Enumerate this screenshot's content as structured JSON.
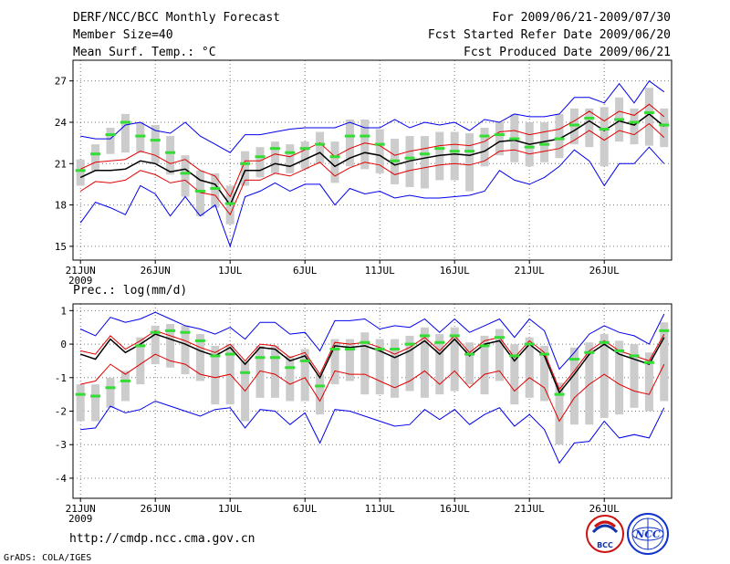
{
  "header": {
    "title": "DERF/NCC/BCC Monthly Forecast",
    "member_size": "Member Size=40",
    "variable1": "Mean Surf. Temp.: °C",
    "period": "For 2009/06/21-2009/07/30",
    "started": "Fcst Started Refer Date 2009/06/20",
    "produced": "Fcst Produced Date 2009/06/21"
  },
  "footer": {
    "url": "http://cmdp.ncc.cma.gov.cn",
    "grads": "GrADS: COLA/IGES",
    "logo1_text": "BCC",
    "logo2_text": "NCC"
  },
  "xaxis": {
    "tick_days": [
      1,
      6,
      11,
      16,
      21,
      26,
      31,
      36
    ],
    "tick_labels": [
      "21JUN",
      "26JUN",
      "1JUL",
      "6JUL",
      "11JUL",
      "16JUL",
      "21JUL",
      "26JUL"
    ],
    "year_label": "2009",
    "range": [
      0.5,
      40.5
    ]
  },
  "colors": {
    "mean": "#000000",
    "spread": "#e00000",
    "extreme": "#0000ee",
    "box": "#cccccc",
    "median": "#33dd33"
  },
  "chart_data": [
    {
      "type": "line",
      "title": "Mean Surf. Temp.: °C",
      "ylim": [
        14,
        28.5
      ],
      "yticks": [
        15,
        18,
        21,
        24,
        27
      ],
      "days": [
        1,
        2,
        3,
        4,
        5,
        6,
        7,
        8,
        9,
        10,
        11,
        12,
        13,
        14,
        15,
        16,
        17,
        18,
        19,
        20,
        21,
        22,
        23,
        24,
        25,
        26,
        27,
        28,
        29,
        30,
        31,
        32,
        33,
        34,
        35,
        36,
        37,
        38,
        39,
        40
      ],
      "series": [
        {
          "name": "ensemble mean",
          "values": [
            20.0,
            20.5,
            20.5,
            20.6,
            21.2,
            21.0,
            20.4,
            20.6,
            19.8,
            19.5,
            18.0,
            20.5,
            20.5,
            21.0,
            20.8,
            21.3,
            21.8,
            20.8,
            21.4,
            21.8,
            21.6,
            20.9,
            21.2,
            21.4,
            21.6,
            21.7,
            21.6,
            21.9,
            22.6,
            22.7,
            22.4,
            22.6,
            22.8,
            23.4,
            24.1,
            23.4,
            24.1,
            23.8,
            24.6,
            23.7
          ]
        },
        {
          "name": "mean + spread",
          "values": [
            20.6,
            21.1,
            21.2,
            21.3,
            21.9,
            21.6,
            21.0,
            21.3,
            20.5,
            20.1,
            18.6,
            21.2,
            21.2,
            21.7,
            21.5,
            22.0,
            22.5,
            21.5,
            22.1,
            22.5,
            22.3,
            21.6,
            21.9,
            22.1,
            22.3,
            22.4,
            22.3,
            22.6,
            23.3,
            23.4,
            23.1,
            23.3,
            23.5,
            24.1,
            24.8,
            24.1,
            24.8,
            24.5,
            25.3,
            24.4
          ]
        },
        {
          "name": "mean - spread",
          "values": [
            19.0,
            19.7,
            19.6,
            19.8,
            20.5,
            20.2,
            19.6,
            19.8,
            18.9,
            18.7,
            17.3,
            19.8,
            19.8,
            20.3,
            20.1,
            20.6,
            21.1,
            20.1,
            20.7,
            21.1,
            20.9,
            20.2,
            20.5,
            20.7,
            20.9,
            21.0,
            20.9,
            21.2,
            21.9,
            22.0,
            21.7,
            21.9,
            22.1,
            22.7,
            23.4,
            22.7,
            23.4,
            23.1,
            23.9,
            22.9
          ]
        },
        {
          "name": "ensemble max",
          "values": [
            23.0,
            22.8,
            22.8,
            23.8,
            24.0,
            23.4,
            23.2,
            24.0,
            23.0,
            22.4,
            21.8,
            23.1,
            23.1,
            23.3,
            23.5,
            23.6,
            23.6,
            23.6,
            24.0,
            23.6,
            23.6,
            24.2,
            23.6,
            24.0,
            23.8,
            24.0,
            23.4,
            24.2,
            24.0,
            24.6,
            24.4,
            24.4,
            24.6,
            25.8,
            25.8,
            25.4,
            26.8,
            25.4,
            27.0,
            26.2
          ]
        },
        {
          "name": "ensemble min",
          "values": [
            16.7,
            18.2,
            17.8,
            17.3,
            19.4,
            18.8,
            17.2,
            18.6,
            17.2,
            18.0,
            15.0,
            18.6,
            19.0,
            19.6,
            19.0,
            19.5,
            19.5,
            18.0,
            19.2,
            18.8,
            19.0,
            18.5,
            18.7,
            18.5,
            18.5,
            18.6,
            18.7,
            19.0,
            20.5,
            19.8,
            19.5,
            20.0,
            20.8,
            22.0,
            21.2,
            19.4,
            21.0,
            21.0,
            22.2,
            21.0
          ]
        },
        {
          "name": "median",
          "values": [
            20.5,
            21.7,
            23.1,
            24.0,
            23.0,
            22.7,
            21.8,
            20.3,
            19.0,
            19.2,
            18.1,
            21.0,
            21.5,
            22.1,
            21.8,
            22.1,
            22.4,
            21.5,
            23.0,
            23.0,
            22.4,
            21.2,
            21.4,
            21.7,
            22.1,
            21.9,
            21.9,
            23.0,
            23.1,
            22.8,
            22.2,
            22.4,
            22.8,
            23.8,
            24.3,
            23.5,
            24.2,
            24.0,
            24.7,
            23.8
          ]
        },
        {
          "name": "box top",
          "values": [
            21.3,
            22.4,
            23.6,
            24.6,
            24.0,
            23.8,
            23.0,
            21.6,
            20.5,
            20.3,
            19.4,
            21.9,
            22.2,
            22.6,
            22.4,
            22.6,
            23.3,
            22.6,
            24.2,
            24.2,
            23.5,
            22.8,
            23.0,
            23.0,
            23.3,
            23.3,
            23.2,
            23.6,
            24.0,
            24.6,
            24.0,
            24.0,
            24.6,
            25.0,
            25.0,
            25.1,
            25.8,
            25.0,
            26.5,
            25.0
          ]
        },
        {
          "name": "box bottom",
          "values": [
            19.4,
            20.5,
            21.7,
            21.8,
            21.8,
            21.0,
            20.2,
            18.6,
            17.2,
            17.8,
            16.6,
            19.4,
            20.0,
            20.3,
            20.3,
            20.6,
            21.0,
            19.6,
            20.8,
            20.6,
            20.3,
            19.5,
            19.3,
            19.2,
            19.8,
            19.8,
            19.0,
            20.8,
            21.6,
            21.1,
            20.8,
            21.1,
            21.4,
            22.4,
            22.2,
            20.8,
            22.6,
            22.4,
            22.3,
            22.2
          ]
        }
      ]
    },
    {
      "type": "line",
      "title": "Prec.: log(mm/d)",
      "ylim": [
        -4.6,
        1.2
      ],
      "yticks": [
        1,
        0,
        -1,
        -2,
        -3,
        -4
      ],
      "days": [
        1,
        2,
        3,
        4,
        5,
        6,
        7,
        8,
        9,
        10,
        11,
        12,
        13,
        14,
        15,
        16,
        17,
        18,
        19,
        20,
        21,
        22,
        23,
        24,
        25,
        26,
        27,
        28,
        29,
        30,
        31,
        32,
        33,
        34,
        35,
        36,
        37,
        38,
        39,
        40
      ],
      "series": [
        {
          "name": "ensemble mean",
          "values": [
            -0.3,
            -0.45,
            0.15,
            -0.25,
            0.0,
            0.3,
            0.15,
            0.0,
            -0.2,
            -0.35,
            -0.1,
            -0.6,
            -0.1,
            -0.15,
            -0.5,
            -0.35,
            -1.0,
            -0.05,
            -0.1,
            -0.05,
            -0.2,
            -0.4,
            -0.2,
            0.1,
            -0.3,
            0.15,
            -0.35,
            0.0,
            0.1,
            -0.5,
            0.0,
            -0.35,
            -1.45,
            -0.9,
            -0.3,
            0.0,
            -0.3,
            -0.45,
            -0.6,
            0.2
          ]
        },
        {
          "name": "mean + spread",
          "values": [
            -0.2,
            -0.3,
            0.25,
            -0.15,
            0.1,
            0.4,
            0.25,
            0.1,
            -0.1,
            -0.25,
            0.0,
            -0.5,
            0.0,
            -0.05,
            -0.4,
            -0.25,
            -0.9,
            0.05,
            0.0,
            0.05,
            -0.1,
            -0.3,
            -0.1,
            0.2,
            -0.2,
            0.25,
            -0.25,
            0.1,
            0.2,
            -0.4,
            0.1,
            -0.25,
            -1.35,
            -0.8,
            -0.2,
            0.1,
            -0.2,
            -0.35,
            -0.5,
            0.3
          ]
        },
        {
          "name": "mean - spread",
          "values": [
            -1.2,
            -1.1,
            -0.6,
            -0.9,
            -0.6,
            -0.3,
            -0.5,
            -0.6,
            -0.9,
            -1.0,
            -0.9,
            -1.4,
            -0.8,
            -0.9,
            -1.2,
            -1.0,
            -1.7,
            -0.8,
            -0.9,
            -0.9,
            -1.1,
            -1.3,
            -1.1,
            -0.8,
            -1.2,
            -0.8,
            -1.3,
            -0.9,
            -0.8,
            -1.4,
            -1.0,
            -1.3,
            -2.3,
            -1.6,
            -1.2,
            -0.9,
            -1.2,
            -1.4,
            -1.5,
            -0.6
          ]
        },
        {
          "name": "ensemble max",
          "values": [
            0.45,
            0.25,
            0.8,
            0.65,
            0.75,
            0.95,
            0.75,
            0.55,
            0.45,
            0.3,
            0.5,
            0.15,
            0.65,
            0.65,
            0.3,
            0.35,
            -0.2,
            0.7,
            0.7,
            0.75,
            0.45,
            0.55,
            0.5,
            0.75,
            0.35,
            0.75,
            0.35,
            0.55,
            0.75,
            0.2,
            0.75,
            0.4,
            -0.75,
            -0.25,
            0.3,
            0.55,
            0.35,
            0.25,
            0.0,
            0.9
          ]
        },
        {
          "name": "ensemble min",
          "values": [
            -2.55,
            -2.5,
            -1.85,
            -2.05,
            -1.95,
            -1.7,
            -1.85,
            -2.0,
            -2.15,
            -1.95,
            -1.9,
            -2.5,
            -1.95,
            -2.0,
            -2.4,
            -2.05,
            -2.95,
            -1.95,
            -2.0,
            -2.15,
            -2.3,
            -2.45,
            -2.4,
            -1.95,
            -2.25,
            -1.95,
            -2.4,
            -2.1,
            -1.9,
            -2.45,
            -2.1,
            -2.55,
            -3.55,
            -2.95,
            -2.9,
            -2.3,
            -2.8,
            -2.7,
            -2.8,
            -1.9
          ]
        },
        {
          "name": "median",
          "values": [
            -1.5,
            -1.55,
            -1.3,
            -1.1,
            -0.05,
            0.35,
            0.4,
            0.35,
            0.1,
            -0.35,
            -0.3,
            -0.85,
            -0.4,
            -0.4,
            -0.7,
            -0.5,
            -1.25,
            -0.15,
            -0.15,
            0.05,
            -0.15,
            -0.15,
            0.0,
            0.25,
            0.05,
            0.25,
            -0.3,
            -0.05,
            0.2,
            -0.35,
            0.0,
            -0.3,
            -1.5,
            -0.45,
            -0.25,
            0.05,
            -0.2,
            -0.35,
            -0.55,
            0.4
          ]
        },
        {
          "name": "box top",
          "values": [
            -1.2,
            -1.2,
            -1.0,
            -0.8,
            0.2,
            0.55,
            0.6,
            0.55,
            0.3,
            -0.05,
            0.0,
            -0.5,
            -0.05,
            -0.05,
            -0.35,
            -0.15,
            -0.9,
            0.15,
            0.15,
            0.35,
            0.15,
            0.15,
            0.25,
            0.5,
            0.3,
            0.5,
            0.05,
            0.25,
            0.45,
            0.0,
            0.2,
            -0.05,
            -1.15,
            -0.1,
            0.05,
            0.3,
            0.1,
            0.0,
            -0.25,
            0.65
          ]
        },
        {
          "name": "box bottom",
          "values": [
            -2.3,
            -2.3,
            -1.9,
            -1.7,
            -1.2,
            -0.6,
            -0.7,
            -0.9,
            -1.1,
            -1.8,
            -1.8,
            -2.3,
            -1.6,
            -1.6,
            -1.7,
            -1.7,
            -2.1,
            -1.2,
            -1.1,
            -1.5,
            -1.5,
            -1.6,
            -1.4,
            -1.6,
            -1.5,
            -1.4,
            -1.2,
            -1.5,
            -1.1,
            -1.8,
            -1.6,
            -1.7,
            -3.0,
            -2.4,
            -2.4,
            -2.2,
            -2.1,
            -1.9,
            -2.0,
            -1.7
          ]
        }
      ]
    }
  ]
}
